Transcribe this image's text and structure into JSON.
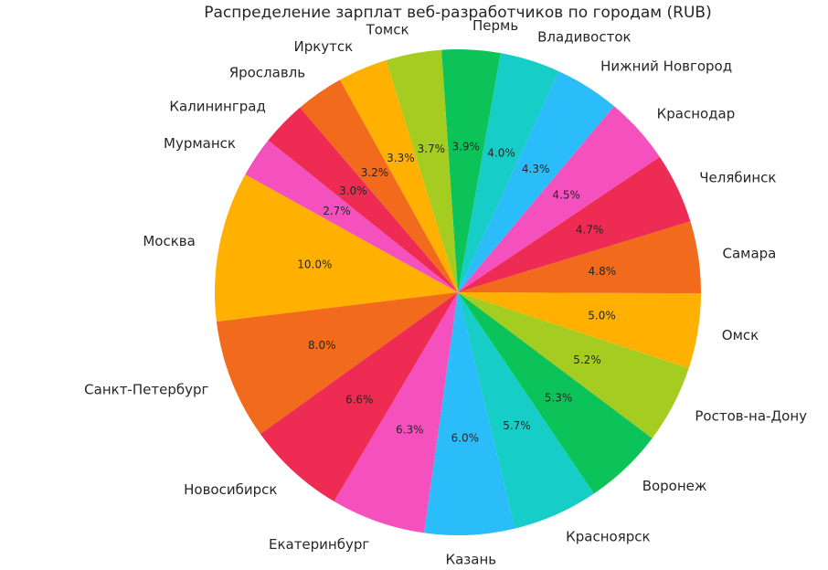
{
  "chart_data": {
    "type": "pie",
    "title": "Распределение зарплат веб-разработчиков по городам (RUB)",
    "categories": [
      "Москва",
      "Санкт-Петербург",
      "Новосибирск",
      "Екатеринбург",
      "Казань",
      "Красноярск",
      "Воронеж",
      "Ростов-на-Дону",
      "Омск",
      "Самара",
      "Челябинск",
      "Краснодар",
      "Нижний Новгород",
      "Владивосток",
      "Пермь",
      "Томск",
      "Иркутск",
      "Ярославль",
      "Калининград",
      "Мурманск"
    ],
    "values": [
      10.0,
      8.0,
      6.6,
      6.3,
      6.0,
      5.7,
      5.3,
      5.2,
      5.0,
      4.8,
      4.7,
      4.5,
      4.3,
      4.0,
      3.9,
      3.7,
      3.3,
      3.2,
      3.0,
      2.7
    ],
    "percent_labels": [
      "10.0%",
      "8.0%",
      "6.6%",
      "6.3%",
      "6.0%",
      "5.7%",
      "5.3%",
      "5.2%",
      "5.0%",
      "4.8%",
      "4.7%",
      "4.5%",
      "4.3%",
      "4.0%",
      "3.9%",
      "3.7%",
      "3.3%",
      "3.2%",
      "3.0%",
      "2.7%"
    ],
    "colors": [
      "#ffb000",
      "#f26a1b",
      "#ee2b52",
      "#f551be",
      "#2bbcfa",
      "#16cdc7",
      "#0cc35a",
      "#a4cc21",
      "#ffb000",
      "#f26a1b",
      "#ee2b52",
      "#f551be",
      "#2bbcfa",
      "#16cdc7",
      "#0cc35a",
      "#a4cc21",
      "#ffb000",
      "#f26a1b",
      "#ee2b52",
      "#f551be"
    ],
    "start_angle_deg": 151,
    "direction": "counterclockwise"
  }
}
